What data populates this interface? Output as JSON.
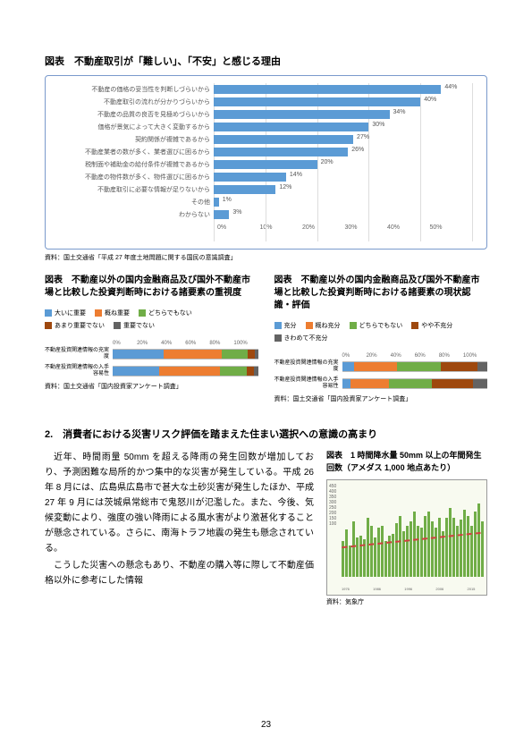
{
  "chart1": {
    "title": "図表　不動産取引が「難しい」、「不安」と感じる理由",
    "items": [
      {
        "label": "不動産の価格の妥当性を判断しづらいから",
        "value": 44
      },
      {
        "label": "不動産取引の流れが分かりづらいから",
        "value": 40
      },
      {
        "label": "不動産の品質の良否を見極めづらいから",
        "value": 34
      },
      {
        "label": "価格が景気によって大きく変動するから",
        "value": 30
      },
      {
        "label": "契約関係が複雑であるから",
        "value": 27
      },
      {
        "label": "不動産業者の数が多く、業者選びに困るから",
        "value": 26
      },
      {
        "label": "税制面や補助金の給付条件が複雑であるから",
        "value": 20
      },
      {
        "label": "不動産の物件数が多く、物件選びに困るから",
        "value": 14
      },
      {
        "label": "不動産取引に必要な情報が足りないから",
        "value": 12
      },
      {
        "label": "その他",
        "value": 1
      },
      {
        "label": "わからない",
        "value": 3
      }
    ],
    "xmax": 50,
    "xticks": [
      "0%",
      "10%",
      "20%",
      "30%",
      "40%",
      "50%"
    ],
    "bar_color": "#5b9bd5",
    "source": "資料：国土交通省「平成 27 年度土地問題に関する国民の意識調査」"
  },
  "chart2": {
    "title": "図表　不動産以外の国内金融商品及び国外不動産市場と比較した投資判断時における諸要素の重視度",
    "legend": [
      {
        "label": "大いに重要",
        "color": "#5b9bd5"
      },
      {
        "label": "概ね重要",
        "color": "#ed7d31"
      },
      {
        "label": "どちらでもない",
        "color": "#70ad47"
      },
      {
        "label": "あまり重要でない",
        "color": "#9e480e"
      },
      {
        "label": "重要でない",
        "color": "#636363"
      }
    ],
    "axis": [
      "0%",
      "20%",
      "40%",
      "60%",
      "80%",
      "100%"
    ],
    "rows": [
      {
        "label": "不動産投資関連情報の充実度",
        "segs": [
          35,
          40,
          18,
          5,
          2
        ]
      },
      {
        "label": "不動産投資関連情報の入手容易性",
        "segs": [
          32,
          42,
          18,
          5,
          3
        ]
      }
    ],
    "source": "資料：国土交通省「国内投資家アンケート調査」"
  },
  "chart3": {
    "title": "図表　不動産以外の国内金融商品及び国外不動産市場と比較した投資判断時における諸要素の現状認識・評価",
    "legend": [
      {
        "label": "充分",
        "color": "#5b9bd5"
      },
      {
        "label": "概ね充分",
        "color": "#ed7d31"
      },
      {
        "label": "どちらでもない",
        "color": "#70ad47"
      },
      {
        "label": "やや不充分",
        "color": "#9e480e"
      },
      {
        "label": "きわめて不充分",
        "color": "#636363"
      }
    ],
    "axis": [
      "0%",
      "20%",
      "40%",
      "60%",
      "80%",
      "100%"
    ],
    "rows": [
      {
        "label": "不動産投資関連情報の充実度",
        "segs": [
          8,
          30,
          30,
          25,
          7
        ]
      },
      {
        "label": "不動産投資関連情報の入手容易性",
        "segs": [
          6,
          26,
          30,
          28,
          10
        ]
      }
    ],
    "source": "資料：国土交通省「国内投資家アンケート調査」"
  },
  "section2": {
    "heading": "2.　消費者における災害リスク評価を踏まえた住まい選択への意識の高まり",
    "paragraphs": [
      "近年、時間雨量 50mm を超える降雨の発生回数が増加しており、予測困難な局所的かつ集中的な災害が発生している。平成 26 年 8 月には、広島県広島市で甚大な土砂災害が発生したほか、平成 27 年 9 月には茨城県常総市で鬼怒川が氾濫した。また、今後、気候変動により、強度の強い降雨による風水害がより激甚化することが懸念されている。さらに、南海トラフ地震の発生も懸念されている。",
      "こうした災害への懸念もあり、不動産の購入等に際して不動産価格以外に参考にした情報"
    ]
  },
  "chart4": {
    "caption": "図表　1 時間降水量 50mm 以上の年間発生回数（アメダス 1,000 地点あたり）",
    "bar_color": "#70ad47",
    "trend_color": "#d04040",
    "bars": [
      180,
      240,
      160,
      280,
      200,
      210,
      190,
      300,
      260,
      200,
      250,
      260,
      180,
      210,
      220,
      270,
      310,
      230,
      260,
      280,
      330,
      260,
      250,
      310,
      330,
      280,
      250,
      300,
      230,
      300,
      350,
      300,
      260,
      290,
      340,
      310,
      260,
      330,
      370,
      280
    ],
    "ymax": 450,
    "source": "資料：気象庁"
  },
  "pageNumber": "23"
}
